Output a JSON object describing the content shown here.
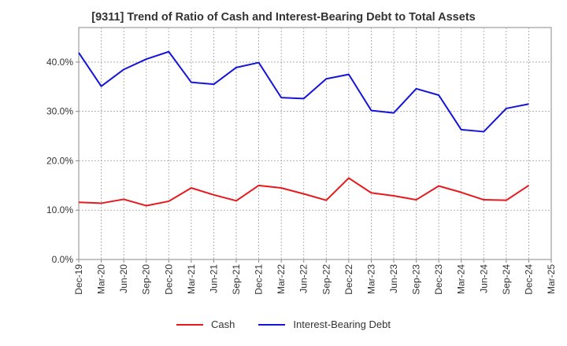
{
  "chart_data": {
    "type": "line",
    "title": "[9311]  Trend of Ratio of Cash and Interest-Bearing Debt to Total Assets",
    "xlabel": "",
    "ylabel": "",
    "x_ticks": [
      "Dec-19",
      "Mar-20",
      "Jun-20",
      "Sep-20",
      "Dec-20",
      "Mar-21",
      "Jun-21",
      "Sep-21",
      "Dec-21",
      "Mar-22",
      "Jun-22",
      "Sep-22",
      "Dec-22",
      "Mar-23",
      "Jun-23",
      "Sep-23",
      "Dec-23",
      "Mar-24",
      "Jun-24",
      "Sep-24",
      "Dec-24",
      "Mar-25"
    ],
    "y_ticks": [
      "0.0%",
      "10.0%",
      "20.0%",
      "30.0%",
      "40.0%"
    ],
    "ylim": [
      0,
      47
    ],
    "grid": true,
    "legend_position": "bottom-center",
    "series": [
      {
        "name": "Cash",
        "color": "#e8191c",
        "points": [
          {
            "x": "Dec-19",
            "y": 11.6
          },
          {
            "x": "Mar-20",
            "y": 11.4
          },
          {
            "x": "Jun-20",
            "y": 12.2
          },
          {
            "x": "Sep-20",
            "y": 10.9
          },
          {
            "x": "Dec-20",
            "y": 11.8
          },
          {
            "x": "Mar-21",
            "y": 14.5
          },
          {
            "x": "Jun-21",
            "y": 13.1
          },
          {
            "x": "Sep-21",
            "y": 11.9
          },
          {
            "x": "Dec-21",
            "y": 15.0
          },
          {
            "x": "Mar-22",
            "y": 14.5
          },
          {
            "x": "Jun-22",
            "y": 13.3
          },
          {
            "x": "Sep-22",
            "y": 12.0
          },
          {
            "x": "Dec-22",
            "y": 16.5
          },
          {
            "x": "Mar-23",
            "y": 13.5
          },
          {
            "x": "Jun-23",
            "y": 12.9
          },
          {
            "x": "Sep-23",
            "y": 12.1
          },
          {
            "x": "Dec-23",
            "y": 14.9
          },
          {
            "x": "Mar-24",
            "y": 13.6
          },
          {
            "x": "Jun-24",
            "y": 12.1
          },
          {
            "x": "Sep-24",
            "y": 12.0
          },
          {
            "x": "Dec-24",
            "y": 15.0
          }
        ]
      },
      {
        "name": "Interest-Bearing Debt",
        "color": "#1515d8",
        "points": [
          {
            "x": "Dec-19",
            "y": 41.9
          },
          {
            "x": "Mar-20",
            "y": 35.1
          },
          {
            "x": "Jun-20",
            "y": 38.5
          },
          {
            "x": "Sep-20",
            "y": 40.6
          },
          {
            "x": "Dec-20",
            "y": 42.1
          },
          {
            "x": "Mar-21",
            "y": 35.9
          },
          {
            "x": "Jun-21",
            "y": 35.5
          },
          {
            "x": "Sep-21",
            "y": 38.9
          },
          {
            "x": "Dec-21",
            "y": 39.9
          },
          {
            "x": "Mar-22",
            "y": 32.8
          },
          {
            "x": "Jun-22",
            "y": 32.6
          },
          {
            "x": "Sep-22",
            "y": 36.6
          },
          {
            "x": "Dec-22",
            "y": 37.5
          },
          {
            "x": "Mar-23",
            "y": 30.2
          },
          {
            "x": "Jun-23",
            "y": 29.7
          },
          {
            "x": "Sep-23",
            "y": 34.6
          },
          {
            "x": "Dec-23",
            "y": 33.3
          },
          {
            "x": "Mar-24",
            "y": 26.3
          },
          {
            "x": "Jun-24",
            "y": 25.9
          },
          {
            "x": "Sep-24",
            "y": 30.6
          },
          {
            "x": "Dec-24",
            "y": 31.5
          }
        ]
      }
    ]
  }
}
